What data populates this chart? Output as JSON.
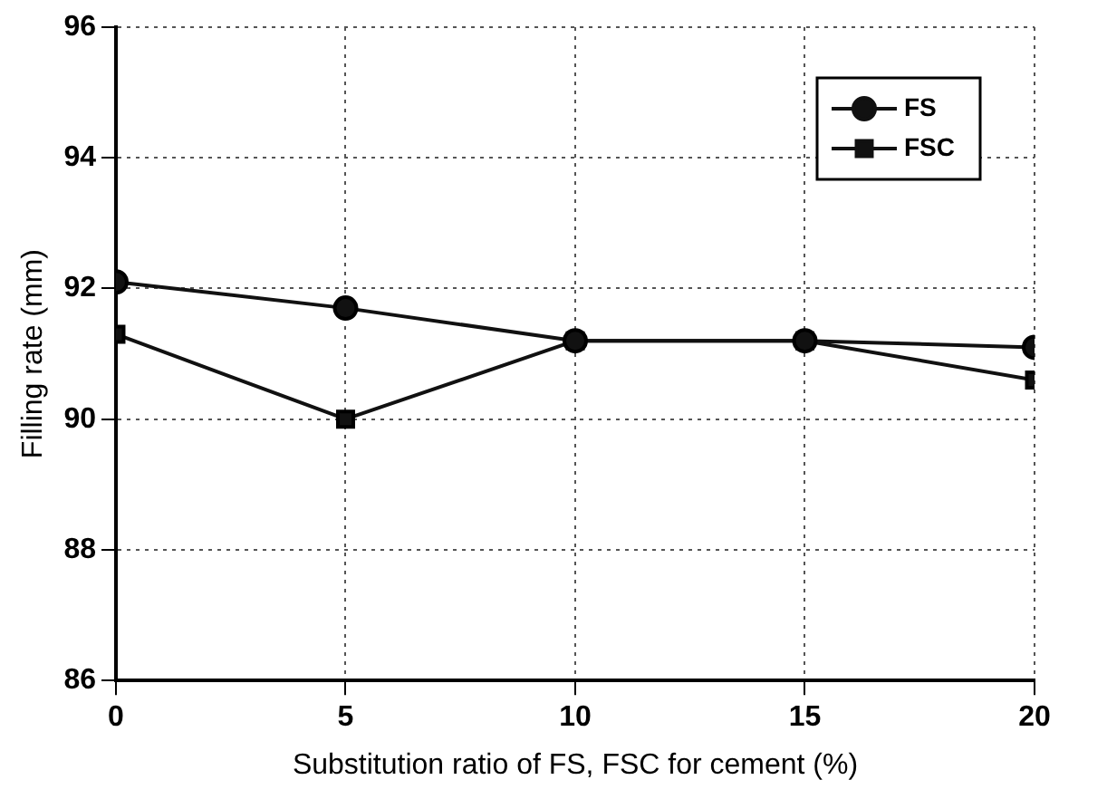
{
  "chart_data": {
    "type": "line",
    "xlabel": "Substitution ratio of FS, FSC for cement (%)",
    "ylabel": "Filling rate (mm)",
    "x": [
      0,
      5,
      10,
      15,
      20
    ],
    "series": [
      {
        "name": "FS",
        "color": "#111111",
        "marker": "circle",
        "values": [
          92.1,
          91.7,
          91.2,
          91.2,
          91.1
        ]
      },
      {
        "name": "FSC",
        "color": "#111111",
        "marker": "square",
        "values": [
          91.3,
          90.0,
          91.2,
          91.2,
          90.6
        ]
      }
    ],
    "xlim": [
      0,
      20
    ],
    "xticks": [
      0,
      5,
      10,
      15,
      20
    ],
    "ylim": [
      86,
      96
    ],
    "yticks": [
      86,
      88,
      90,
      92,
      94,
      96
    ],
    "grid": true,
    "legend": "top right",
    "line_style": "solid"
  }
}
